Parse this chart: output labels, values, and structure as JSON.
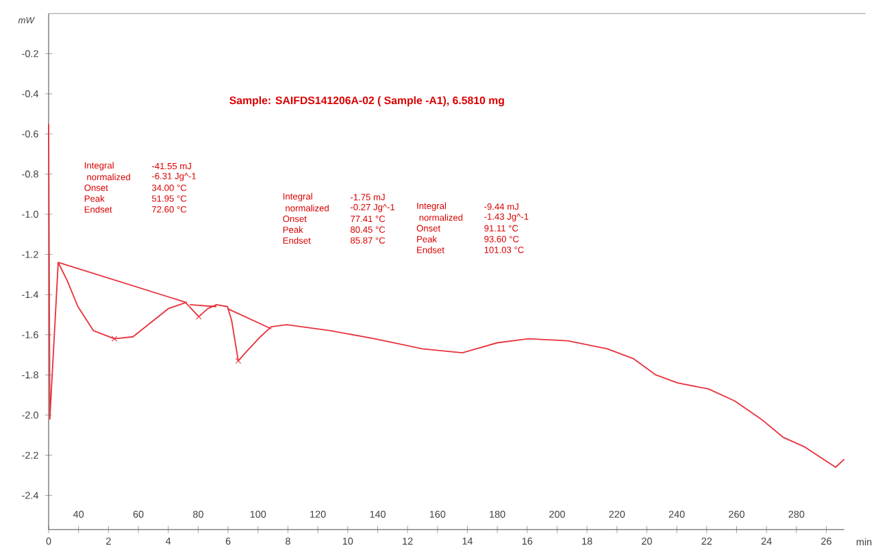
{
  "chart_data": {
    "type": "line",
    "title": "Sample: SAIFDS141206A-02 ( Sample -A1), 6.5810 mg",
    "xlabel": "min",
    "ylabel": "mW",
    "xlim": [
      0,
      26.6
    ],
    "xticks": [
      0,
      2,
      4,
      6,
      8,
      10,
      12,
      14,
      16,
      18,
      20,
      22,
      24,
      26
    ],
    "x2lim": [
      30,
      296
    ],
    "x2ticks": [
      40,
      60,
      80,
      100,
      120,
      140,
      160,
      180,
      200,
      220,
      240,
      260,
      280
    ],
    "ylim": [
      -2.57,
      0
    ],
    "yticks": [
      -0.2,
      -0.4,
      -0.6,
      -0.8,
      {
        "value": -1.0,
        "label": "-1.0"
      },
      -1.2,
      -1.4,
      -1.6,
      -1.8,
      {
        "value": -2.0,
        "label": "-2.0"
      },
      -2.2,
      -2.4
    ],
    "grid": false,
    "series": [
      {
        "color": "#e8323c",
        "marker": "none",
        "x": [
          0,
          0.04,
          0.32,
          0.62,
          0.98,
          1.5,
          2.2,
          2.82,
          3.41,
          4.0,
          4.58,
          5.02,
          5.32,
          5.61,
          5.98,
          6.12,
          6.34,
          6.64,
          7.08,
          7.44,
          7.96,
          9.43,
          10.9,
          12.5,
          13.83,
          15.0,
          16.04,
          17.36,
          18.68,
          19.56,
          20.3,
          21.03,
          22.06,
          22.94,
          23.82,
          24.55,
          25.29,
          26.31,
          26.6
        ],
        "values": [
          -0.55,
          -2.02,
          -1.24,
          -1.33,
          -1.46,
          -1.58,
          -1.62,
          -1.61,
          -1.54,
          -1.47,
          -1.44,
          -1.51,
          -1.47,
          -1.45,
          -1.46,
          -1.53,
          -1.73,
          -1.68,
          -1.61,
          -1.56,
          -1.55,
          -1.58,
          -1.62,
          -1.67,
          -1.69,
          -1.64,
          -1.62,
          -1.63,
          -1.67,
          -1.72,
          -1.8,
          -1.84,
          -1.87,
          -1.93,
          -2.02,
          -2.11,
          -2.16,
          -2.26,
          -2.22
        ]
      },
      {
        "color": "#e8323c",
        "marker": "none",
        "x": [
          0.32,
          4.62
        ],
        "values": [
          -1.24,
          -1.44
        ]
      },
      {
        "color": "#e8323c",
        "marker": "none",
        "x": [
          4.72,
          5.61
        ],
        "values": [
          -1.45,
          -1.46
        ]
      },
      {
        "color": "#e8323c",
        "marker": "none",
        "x": [
          5.98,
          7.44
        ],
        "values": [
          -1.47,
          -1.57
        ]
      },
      {
        "type": "scatter",
        "color": "#e8323c",
        "marker": "cross",
        "x": [
          2.2,
          5.02,
          6.34
        ],
        "values": [
          -1.62,
          -1.51,
          -1.73
        ]
      }
    ],
    "annotations": [
      "Integral",
      "-41.55 mJ",
      " normalized",
      "-6.31 Jg^-1",
      "Onset",
      "34.00 °C",
      "Peak",
      "51.95 °C",
      "Endset",
      "72.60 °C",
      "Integral",
      "-1.75 mJ",
      " normalized",
      "-0.27 Jg^-1",
      "Onset",
      "77.41 °C",
      "Peak",
      "80.45 °C",
      "Endset",
      "85.87 °C",
      "Integral",
      "-9.44 mJ",
      " normalized",
      "-1.43 Jg^-1",
      "Onset",
      "91.11 °C",
      "Peak",
      "93.60 °C",
      "Endset",
      "101.03 °C"
    ]
  }
}
